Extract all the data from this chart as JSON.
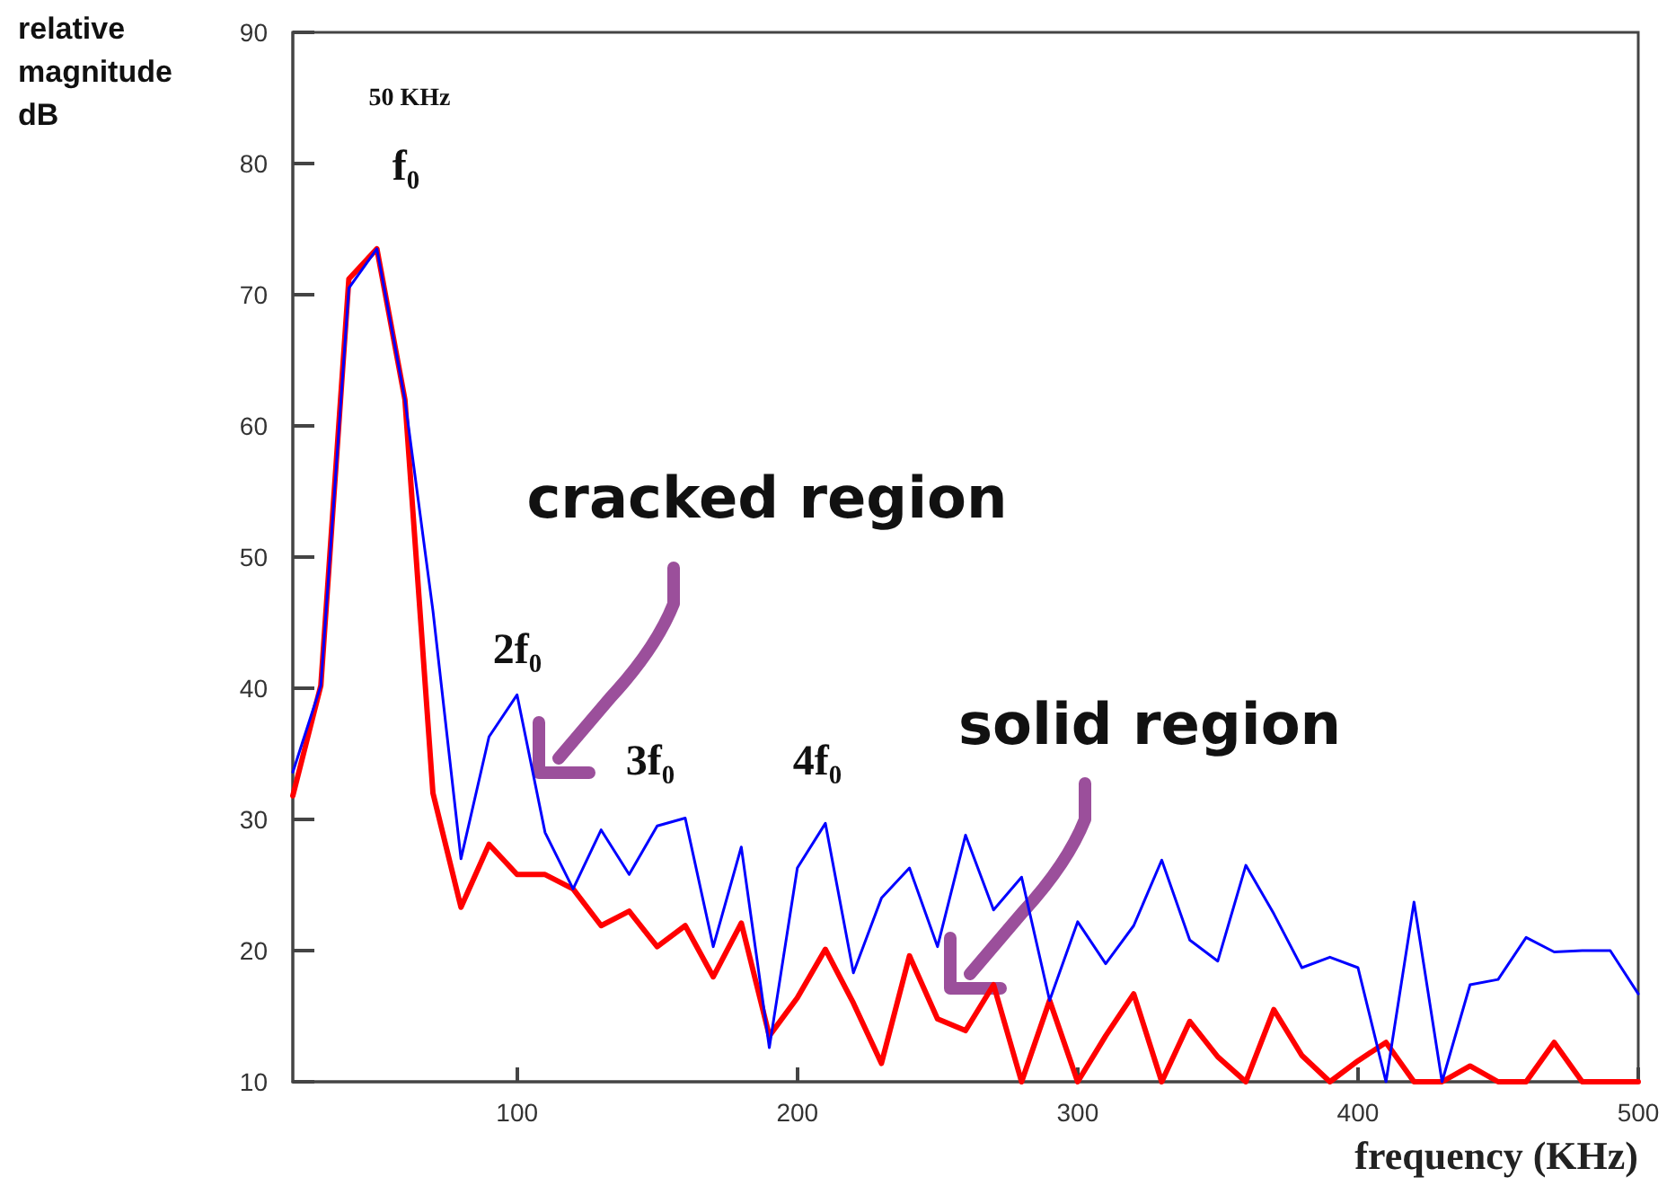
{
  "chart_data": {
    "type": "line",
    "xlabel": "frequency (KHz)",
    "ylabel": "relative magnitude dB",
    "x": [
      20,
      30,
      40,
      50,
      60,
      70,
      80,
      90,
      100,
      110,
      120,
      130,
      140,
      150,
      160,
      170,
      180,
      190,
      200,
      210,
      220,
      230,
      240,
      250,
      260,
      270,
      280,
      290,
      300,
      310,
      320,
      330,
      340,
      350,
      360,
      370,
      380,
      390,
      400,
      410,
      420,
      430,
      440,
      450,
      460,
      470,
      480,
      490,
      500
    ],
    "series": [
      {
        "color": "#ff0000",
        "values": [
          31.8,
          40.2,
          71.2,
          73.5,
          62,
          32,
          23.3,
          28.1,
          25.8,
          25.8,
          24.7,
          21.9,
          23,
          20.3,
          21.9,
          18,
          22.1,
          13.5,
          16.4,
          20.1,
          16,
          11.4,
          19.6,
          14.8,
          13.9,
          17.4,
          10,
          16.2,
          10,
          13.5,
          16.7,
          10,
          14.6,
          11.9,
          10,
          15.5,
          12,
          10,
          11.6,
          13,
          10,
          10,
          11.2,
          10,
          10,
          13,
          10,
          10,
          10
        ]
      },
      {
        "color": "#0000ff",
        "values": [
          33.6,
          40.2,
          70.5,
          73.5,
          62,
          45.9,
          27,
          36.3,
          39.5,
          29,
          24.7,
          29.2,
          25.8,
          29.5,
          30.1,
          20.3,
          27.9,
          12.6,
          26.3,
          29.7,
          18.3,
          24,
          26.3,
          20.3,
          28.8,
          23.1,
          25.6,
          16.2,
          22.2,
          19,
          21.9,
          26.9,
          20.8,
          19.2,
          26.5,
          22.8,
          18.7,
          19.5,
          18.7,
          10,
          23.7,
          10,
          17.4,
          17.8,
          21,
          19.9,
          20,
          20,
          16.7
        ]
      }
    ],
    "xlim": [
      20,
      500
    ],
    "xticks": [
      100,
      200,
      300,
      400,
      500
    ],
    "ylim": [
      10,
      90
    ],
    "yticks": [
      10,
      20,
      30,
      40,
      50,
      60,
      70,
      80,
      90
    ],
    "grid": false,
    "marker": "none",
    "line_style": "solid",
    "annotations": [
      "50 KHz",
      "f₀",
      "2f₀",
      "3f₀",
      "4f₀",
      "cracked region",
      "solid region"
    ]
  }
}
